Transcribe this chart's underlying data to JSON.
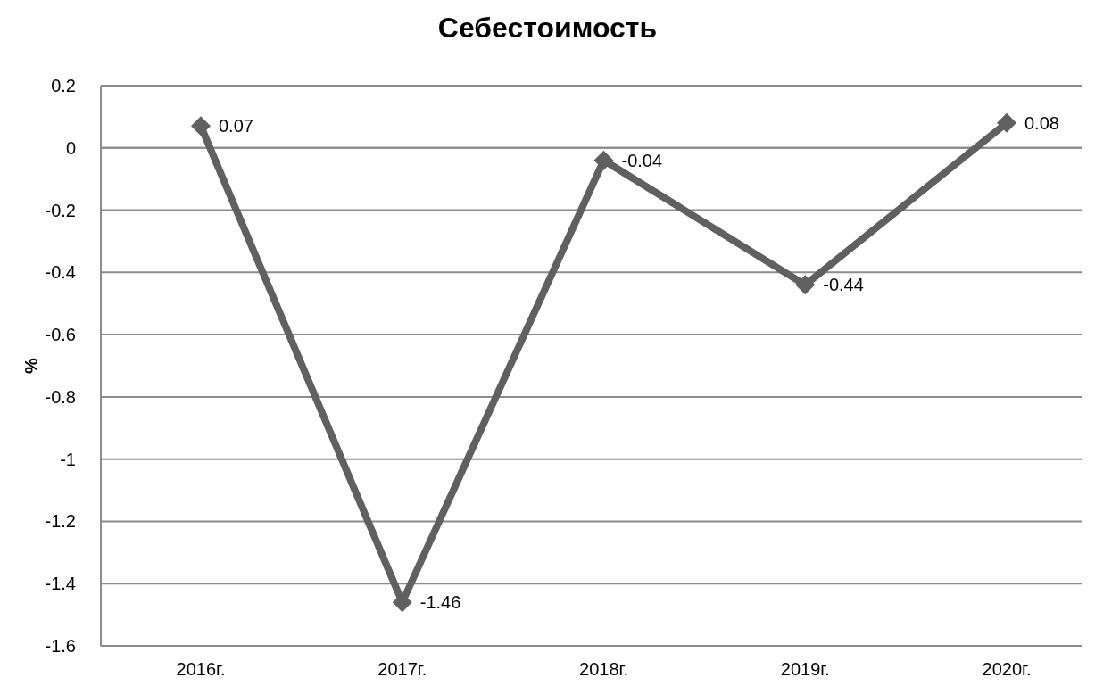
{
  "chart_data": {
    "type": "line",
    "title": "Себестоимость",
    "ylabel": "%",
    "categories": [
      "2016г.",
      "2017г.",
      "2018г.",
      "2019г.",
      "2020г."
    ],
    "series": [
      {
        "color": "#606060",
        "values": [
          0.07,
          -1.46,
          -0.04,
          -0.44,
          0.08
        ]
      }
    ],
    "ylim": [
      -1.6,
      0.2
    ],
    "yticks": [
      -1.6,
      -1.4,
      -1.2,
      -1,
      -0.8,
      -0.6,
      -0.4,
      -0.2,
      0,
      0.2
    ],
    "grid": "y",
    "marker": "diamond",
    "data_labels": true
  }
}
